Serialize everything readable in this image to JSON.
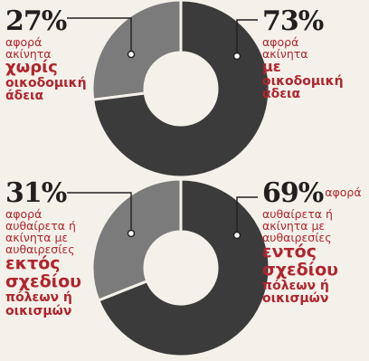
{
  "colors": {
    "background": "#f4f1ea",
    "ring_dark": "#3b3b3b",
    "ring_light": "#7b7b7b",
    "text_dark": "#231f20",
    "text_accent": "#b0252e"
  },
  "chart_data": [
    {
      "type": "pie",
      "style": "donut",
      "slices": [
        {
          "value": 27,
          "label": "27%",
          "color": "#7b7b7b"
        },
        {
          "value": 73,
          "label": "73%",
          "color": "#3b3b3b"
        }
      ],
      "annotations": {
        "left": {
          "pct": "27%",
          "lines": [
            "αφορά",
            "ακίνητα"
          ],
          "bold_lines": [
            "χωρίς",
            "οικοδομική",
            "άδεια"
          ]
        },
        "right": {
          "pct": "73%",
          "lines": [
            "αφορά",
            "ακίνητα"
          ],
          "bold_lines": [
            "με",
            "οικοδομική",
            "άδεια"
          ]
        }
      }
    },
    {
      "type": "pie",
      "style": "donut",
      "slices": [
        {
          "value": 31,
          "label": "31%",
          "color": "#7b7b7b"
        },
        {
          "value": 69,
          "label": "69%",
          "color": "#3b3b3b"
        }
      ],
      "annotations": {
        "left": {
          "pct": "31%",
          "lines": [
            "αφορά",
            "αυθαίρετα ή",
            "ακίνητα με",
            "αυθαιρεσίες"
          ],
          "big_lines": [
            "εκτός",
            "σχεδίου"
          ],
          "bold_lines": [
            "πόλεων ή",
            "οικισμών"
          ]
        },
        "right": {
          "pct": "69%",
          "pct_suffix": "αφορά",
          "lines": [
            "αυθαίρετα ή",
            "ακίνητα με",
            "αυθαιρεσίες"
          ],
          "big_lines": [
            "εντός",
            "σχεδίου"
          ],
          "bold_lines": [
            "πόλεων ή",
            "οικισμών"
          ]
        }
      }
    }
  ]
}
